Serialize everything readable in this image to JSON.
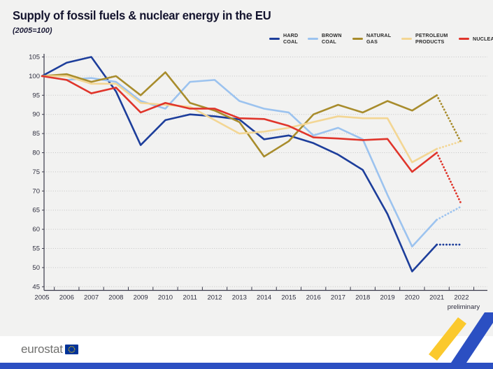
{
  "header": {
    "title": "Supply of fossil fuels & nuclear energy in the EU",
    "subtitle": "(2005=100)"
  },
  "footer": {
    "logo_text": "eurostat"
  },
  "brand": {
    "bar_blue": "#2b4fc2",
    "ribbon_yellow": "#fbc92d",
    "ribbon_blue": "#2b4fc2",
    "flag_blue": "#003399",
    "star_yellow": "#ffcc00"
  },
  "chart_data": {
    "type": "line",
    "title": "Supply of fossil fuels & nuclear energy in the EU",
    "index_note": "(2005=100)",
    "x": [
      2005,
      2006,
      2007,
      2008,
      2009,
      2010,
      2011,
      2012,
      2013,
      2014,
      2015,
      2016,
      2017,
      2018,
      2019,
      2020,
      2021,
      2022
    ],
    "last_year_note": "preliminary",
    "ylim": [
      45,
      105
    ],
    "ytick_step": 5,
    "grid": true,
    "legend_position": "top-right",
    "final_segment_dotted": true,
    "series": [
      {
        "name": "HARD COAL",
        "legend_lines": [
          "HARD",
          "COAL"
        ],
        "color": "#1d3e9b",
        "values": [
          100,
          103.5,
          105,
          96,
          82,
          88.5,
          90,
          89.5,
          88.7,
          83.5,
          84.5,
          82.5,
          79.5,
          75.5,
          64,
          49,
          56,
          56
        ]
      },
      {
        "name": "BROWN COAL",
        "legend_lines": [
          "BROWN",
          "COAL"
        ],
        "color": "#9cc3ef",
        "values": [
          100,
          99,
          99.5,
          98.5,
          93.5,
          91.5,
          98.5,
          99,
          93.5,
          91.5,
          90.5,
          84.5,
          86.5,
          83.5,
          69,
          55.5,
          62.5,
          66
        ]
      },
      {
        "name": "NATURAL GAS",
        "legend_lines": [
          "NATURAL",
          "GAS"
        ],
        "color": "#a88c2c",
        "values": [
          100,
          100.5,
          98.5,
          100,
          95,
          101,
          93,
          91,
          88,
          79,
          83,
          90,
          92.5,
          90.5,
          93.5,
          91,
          95,
          82.5
        ]
      },
      {
        "name": "PETROLEUM PRODUCTS",
        "legend_lines": [
          "PETROLEUM",
          "PRODUCTS"
        ],
        "color": "#f3d694",
        "values": [
          100,
          100,
          98,
          98,
          93,
          92.5,
          92,
          88.5,
          85,
          85.5,
          86.5,
          88,
          89.5,
          89,
          89,
          77.5,
          81,
          83
        ]
      },
      {
        "name": "NUCLEAR",
        "legend_lines": [
          "NUCLEAR"
        ],
        "color": "#e0352b",
        "values": [
          100,
          99,
          95.5,
          97,
          90.5,
          93,
          91.5,
          91.5,
          89,
          88.8,
          87,
          84,
          83.7,
          83.3,
          83.6,
          75,
          80,
          66.5
        ]
      }
    ]
  }
}
